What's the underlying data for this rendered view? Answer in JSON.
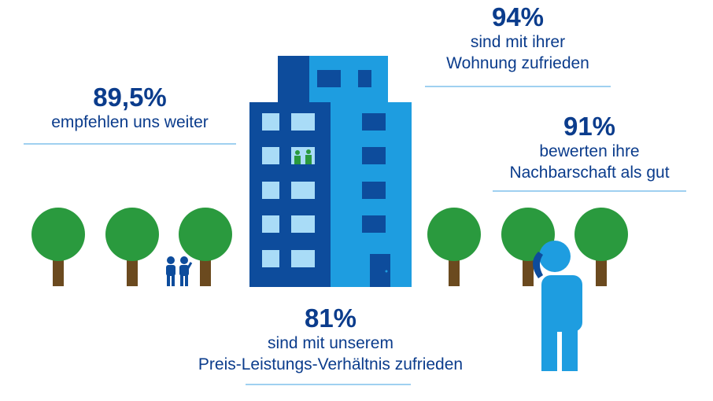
{
  "stats": [
    {
      "value": "94%",
      "line1": "sind mit ihrer",
      "line2": "Wohnung zufrieden"
    },
    {
      "value": "89,5%",
      "line1": "empfehlen uns weiter",
      "line2": ""
    },
    {
      "value": "91%",
      "line1": "bewerten ihre",
      "line2": "Nachbarschaft als gut"
    },
    {
      "value": "81%",
      "line1": "sind mit unserem",
      "line2": "Preis-Leistungs-Verhältnis zufrieden"
    }
  ],
  "colors": {
    "text": "#0b3c8c",
    "building_dark": "#0d4c9c",
    "building_light": "#1e9de0",
    "window_light": "#a9dcf7",
    "window_dark": "#0d4c9c",
    "tree_green": "#2a9a3e",
    "trunk": "#6b4a1f",
    "person": "#1e9de0",
    "rule": "#9fd0f0"
  },
  "icons": [
    "apartment-building-icon",
    "tree-icon",
    "family-icon",
    "person-on-phone-icon"
  ]
}
